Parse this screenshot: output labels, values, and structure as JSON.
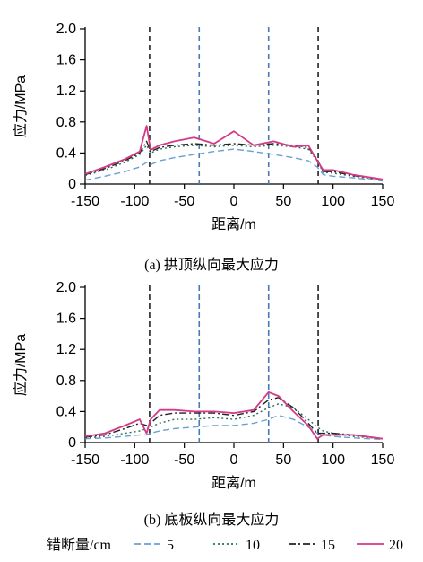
{
  "chart_data": [
    {
      "type": "line",
      "caption": "(a)  拱顶纵向最大应力",
      "xlabel": "距离/m",
      "ylabel": "应力/MPa",
      "xlim": [
        -150,
        150
      ],
      "ylim": [
        0,
        2.0
      ],
      "xticks": [
        "-150",
        "-100",
        "-50",
        "0",
        "50",
        "100",
        "150"
      ],
      "yticks": [
        "0",
        "0.4",
        "0.8",
        "1.2",
        "1.6",
        "2.0"
      ],
      "vlines": [
        {
          "x": -85,
          "color": "#222222"
        },
        {
          "x": -35,
          "color": "#4a7ab5"
        },
        {
          "x": 35,
          "color": "#4a7ab5"
        },
        {
          "x": 85,
          "color": "#222222"
        }
      ],
      "series": [
        {
          "name": "5",
          "x": [
            -150,
            -130,
            -110,
            -95,
            -88,
            -84,
            -75,
            -60,
            -40,
            -20,
            0,
            20,
            40,
            60,
            75,
            84,
            90,
            100,
            120,
            150
          ],
          "y": [
            0.05,
            0.1,
            0.16,
            0.22,
            0.28,
            0.25,
            0.3,
            0.34,
            0.38,
            0.42,
            0.45,
            0.42,
            0.38,
            0.34,
            0.3,
            0.22,
            0.12,
            0.1,
            0.08,
            0.04
          ]
        },
        {
          "name": "10",
          "x": [
            -150,
            -130,
            -110,
            -95,
            -88,
            -84,
            -75,
            -60,
            -40,
            -20,
            0,
            20,
            40,
            60,
            75,
            84,
            90,
            100,
            120,
            150
          ],
          "y": [
            0.11,
            0.18,
            0.28,
            0.38,
            0.5,
            0.4,
            0.45,
            0.48,
            0.5,
            0.48,
            0.5,
            0.48,
            0.5,
            0.48,
            0.45,
            0.3,
            0.15,
            0.14,
            0.1,
            0.05
          ]
        },
        {
          "name": "15",
          "x": [
            -150,
            -130,
            -110,
            -95,
            -88,
            -84,
            -75,
            -60,
            -40,
            -20,
            0,
            20,
            40,
            60,
            75,
            84,
            90,
            100,
            120,
            150
          ],
          "y": [
            0.12,
            0.2,
            0.3,
            0.4,
            0.55,
            0.42,
            0.47,
            0.5,
            0.52,
            0.5,
            0.52,
            0.5,
            0.52,
            0.5,
            0.47,
            0.32,
            0.16,
            0.16,
            0.11,
            0.06
          ]
        },
        {
          "name": "20",
          "x": [
            -150,
            -130,
            -110,
            -95,
            -88,
            -84,
            -75,
            -60,
            -40,
            -20,
            0,
            20,
            40,
            60,
            75,
            84,
            90,
            100,
            120,
            150
          ],
          "y": [
            0.13,
            0.22,
            0.32,
            0.42,
            0.75,
            0.44,
            0.5,
            0.55,
            0.6,
            0.52,
            0.68,
            0.5,
            0.55,
            0.48,
            0.5,
            0.3,
            0.18,
            0.18,
            0.12,
            0.06
          ]
        }
      ]
    },
    {
      "type": "line",
      "caption": "(b) 底板纵向最大应力",
      "xlabel": "距离/m",
      "ylabel": "应力/MPa",
      "xlim": [
        -150,
        150
      ],
      "ylim": [
        0,
        2.0
      ],
      "xticks": [
        "-150",
        "-100",
        "-50",
        "0",
        "50",
        "100",
        "150"
      ],
      "yticks": [
        "0",
        "0.4",
        "0.8",
        "1.2",
        "1.6",
        "2.0"
      ],
      "vlines": [
        {
          "x": -85,
          "color": "#222222"
        },
        {
          "x": -35,
          "color": "#4a7ab5"
        },
        {
          "x": 35,
          "color": "#4a7ab5"
        },
        {
          "x": 85,
          "color": "#222222"
        }
      ],
      "series": [
        {
          "name": "5",
          "x": [
            -150,
            -130,
            -110,
            -95,
            -88,
            -84,
            -75,
            -60,
            -40,
            -20,
            0,
            20,
            35,
            45,
            60,
            75,
            84,
            90,
            100,
            120,
            150
          ],
          "y": [
            0.05,
            0.06,
            0.08,
            0.1,
            0.1,
            0.12,
            0.15,
            0.18,
            0.2,
            0.22,
            0.22,
            0.25,
            0.3,
            0.35,
            0.3,
            0.2,
            0.12,
            0.1,
            0.08,
            0.06,
            0.04
          ]
        },
        {
          "name": "10",
          "x": [
            -150,
            -130,
            -110,
            -95,
            -88,
            -84,
            -75,
            -60,
            -40,
            -20,
            0,
            20,
            35,
            45,
            60,
            75,
            84,
            90,
            100,
            120,
            150
          ],
          "y": [
            0.06,
            0.08,
            0.12,
            0.15,
            0.18,
            0.2,
            0.25,
            0.3,
            0.3,
            0.32,
            0.3,
            0.35,
            0.45,
            0.5,
            0.45,
            0.3,
            0.2,
            0.15,
            0.12,
            0.08,
            0.05
          ]
        },
        {
          "name": "15",
          "x": [
            -150,
            -130,
            -110,
            -95,
            -88,
            -84,
            -75,
            -60,
            -40,
            -20,
            0,
            20,
            35,
            45,
            60,
            75,
            84,
            90,
            100,
            120,
            150
          ],
          "y": [
            0.07,
            0.1,
            0.18,
            0.25,
            0.22,
            0.25,
            0.35,
            0.38,
            0.38,
            0.38,
            0.35,
            0.4,
            0.55,
            0.58,
            0.45,
            0.25,
            0.12,
            0.12,
            0.12,
            0.1,
            0.05
          ]
        },
        {
          "name": "20",
          "x": [
            -150,
            -130,
            -110,
            -95,
            -88,
            -84,
            -75,
            -60,
            -40,
            -20,
            0,
            20,
            35,
            45,
            60,
            75,
            84,
            90,
            100,
            120,
            150
          ],
          "y": [
            0.08,
            0.12,
            0.22,
            0.3,
            0.12,
            0.3,
            0.42,
            0.42,
            0.4,
            0.4,
            0.38,
            0.42,
            0.65,
            0.6,
            0.4,
            0.22,
            0.05,
            0.1,
            0.1,
            0.1,
            0.05
          ]
        }
      ]
    }
  ],
  "legend": {
    "title": "错断量/cm",
    "items": [
      {
        "label": "5",
        "color": "#6a9fd4",
        "dash": "7,4"
      },
      {
        "label": "10",
        "color": "#2f6e55",
        "dash": "2,3"
      },
      {
        "label": "15",
        "color": "#222222",
        "dash": "8,3,2,3"
      },
      {
        "label": "20",
        "color": "#d43a86",
        "dash": ""
      }
    ]
  },
  "style": {
    "axis_color": "#000000",
    "series_colors": {
      "5": "#6a9fd4",
      "10": "#2f6e55",
      "15": "#222222",
      "20": "#d43a86"
    },
    "series_dash": {
      "5": "7,4",
      "10": "2,3",
      "15": "8,3,2,3",
      "20": ""
    }
  }
}
